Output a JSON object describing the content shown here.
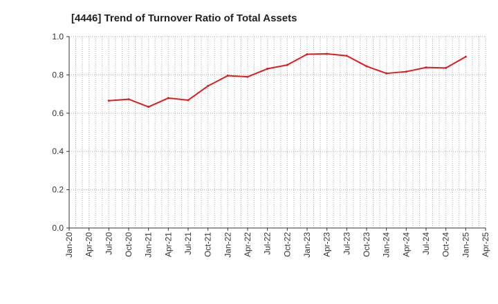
{
  "chart_data": {
    "type": "line",
    "title": "[4446]  Trend of Turnover Ratio of Total Assets",
    "xlabel": "",
    "ylabel": "",
    "ylim": [
      0,
      1.0
    ],
    "yticks": [
      "0.0",
      "0.2",
      "0.4",
      "0.6",
      "0.8",
      "1.0"
    ],
    "xticks": [
      "Jan-20",
      "Apr-20",
      "Jul-20",
      "Oct-20",
      "Jan-21",
      "Apr-21",
      "Jul-21",
      "Oct-21",
      "Jan-22",
      "Apr-22",
      "Jul-22",
      "Oct-22",
      "Jan-23",
      "Apr-23",
      "Jul-23",
      "Oct-23",
      "Jan-24",
      "Apr-24",
      "Jul-24",
      "Oct-24",
      "Jan-25",
      "Apr-25"
    ],
    "grid": true,
    "legend": "none",
    "colors": {
      "line": "#e31a1c",
      "grid": "#aaaaaa",
      "axis": "#333333"
    },
    "series": [
      {
        "x": [
          "Jul-20",
          "Oct-20",
          "Jan-21",
          "Apr-21",
          "Jul-21",
          "Oct-21",
          "Jan-22",
          "Apr-22",
          "Jul-22",
          "Oct-22",
          "Jan-23",
          "Apr-23",
          "Jul-23",
          "Oct-23",
          "Jan-24",
          "Apr-24",
          "Jul-24",
          "Oct-24",
          "Jan-25"
        ],
        "values": [
          0.665,
          0.673,
          0.633,
          0.679,
          0.668,
          0.742,
          0.796,
          0.79,
          0.832,
          0.852,
          0.908,
          0.91,
          0.9,
          0.845,
          0.808,
          0.817,
          0.839,
          0.836,
          0.895
        ]
      }
    ]
  }
}
